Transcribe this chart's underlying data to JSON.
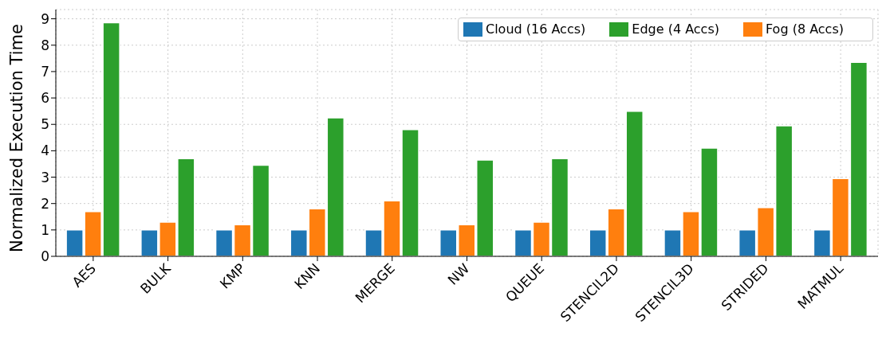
{
  "chart_data": {
    "type": "bar",
    "ylabel": "Normalized Execution Time",
    "categories": [
      "AES",
      "BULK",
      "KMP",
      "KNN",
      "MERGE",
      "NW",
      "QUEUE",
      "STENCIL2D",
      "STENCIL3D",
      "STRIDED",
      "MATMUL"
    ],
    "series": [
      {
        "name": "Cloud (16 Accs)",
        "color": "#1f77b4",
        "values": [
          1,
          1,
          1,
          1,
          1,
          1,
          1,
          1,
          1,
          1,
          1
        ]
      },
      {
        "name": "Fog (8 Accs)",
        "color": "#ff7f0e",
        "values": [
          1.7,
          1.3,
          1.2,
          1.8,
          2.1,
          1.2,
          1.3,
          1.8,
          1.7,
          1.85,
          2.95
        ]
      },
      {
        "name": "Edge (4 Accs)",
        "color": "#2ca02c",
        "values": [
          8.85,
          3.7,
          3.45,
          5.25,
          4.8,
          3.65,
          3.7,
          5.5,
          4.1,
          4.95,
          7.35
        ]
      }
    ],
    "ylim": [
      0,
      9.35
    ],
    "yticks": [
      0,
      1,
      2,
      3,
      4,
      5,
      6,
      7,
      8,
      9
    ],
    "grid": true,
    "legend": "top right"
  }
}
